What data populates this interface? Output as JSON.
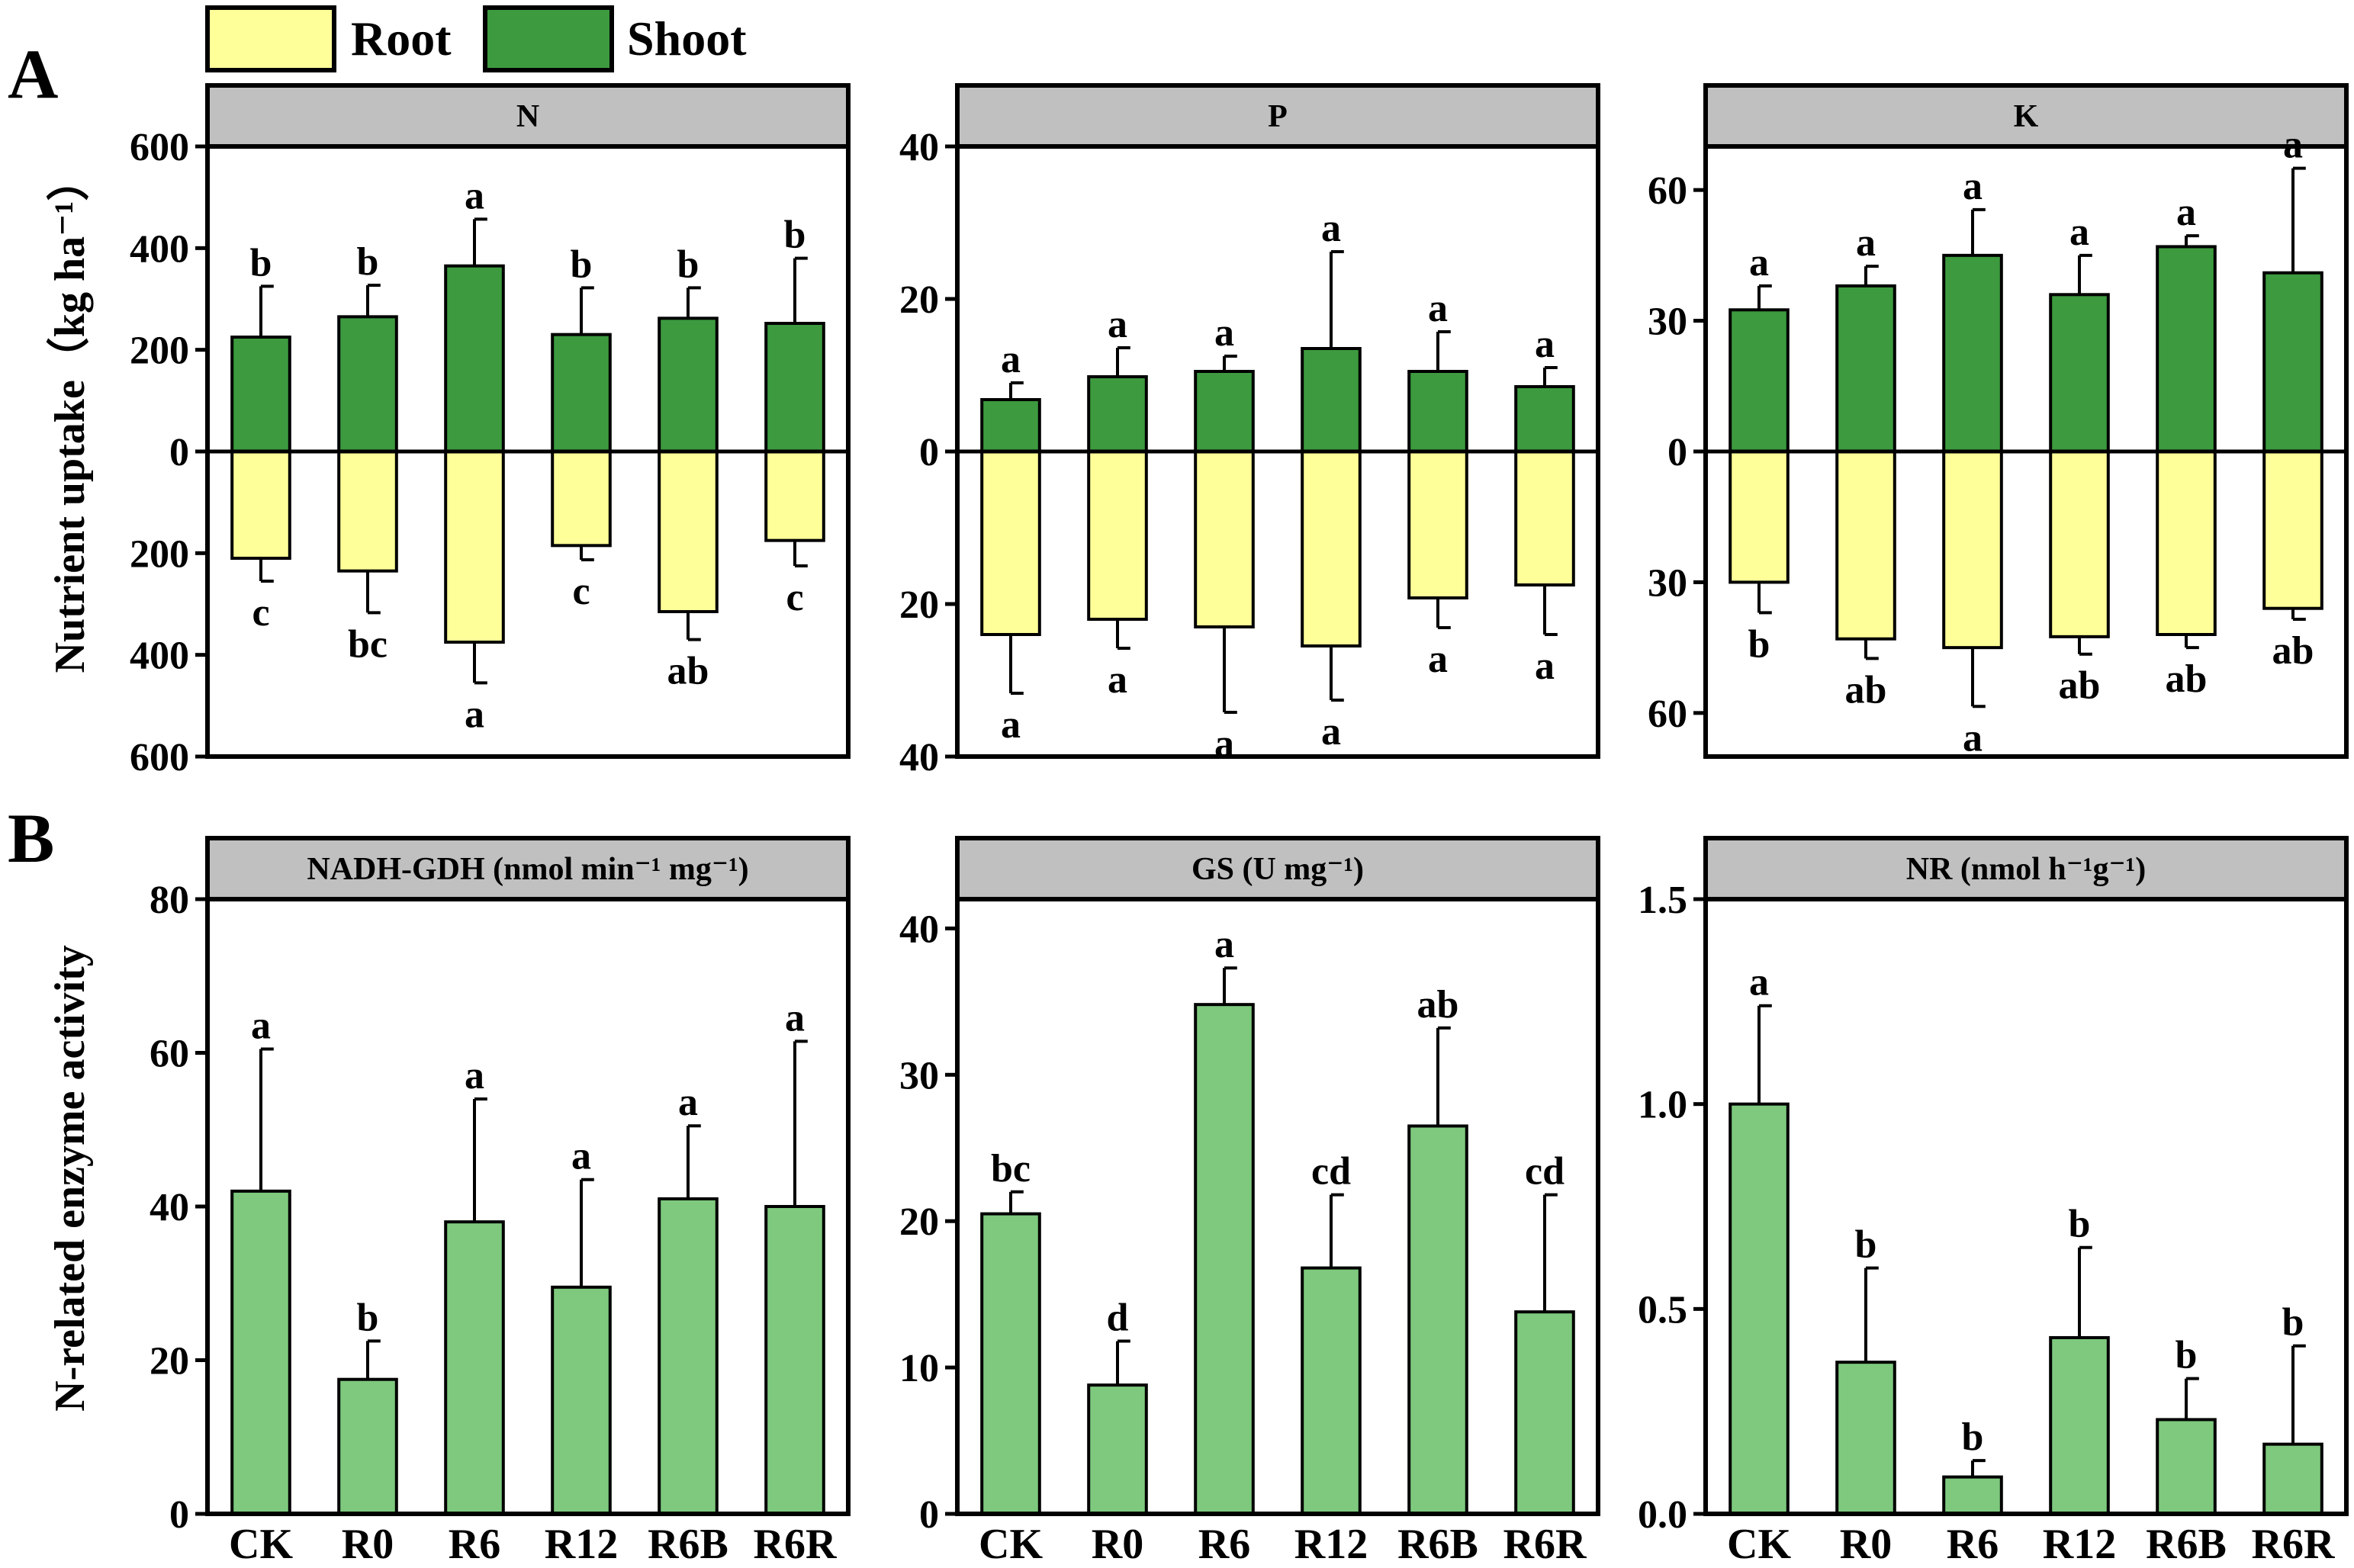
{
  "legend": {
    "root_label": "Root",
    "shoot_label": "Shoot",
    "root_color": "#ffff99",
    "shoot_color": "#3d9a3f"
  },
  "panel_labels": {
    "a": "A",
    "b": "B"
  },
  "row_a_ylabel": "Nutrient uptake（kg ha⁻¹）",
  "row_b_ylabel": "N-related enzyme activity",
  "enzyme_color": "#7ec97e",
  "header_color": "#c0c0c0",
  "chart_data": [
    {
      "type": "bar",
      "subtype": "diverging",
      "title": "N",
      "categories": [
        "CK",
        "R0",
        "R6",
        "R12",
        "R6B",
        "R6R"
      ],
      "ylim": [
        -600,
        600
      ],
      "yticks": [
        -600,
        -400,
        -200,
        0,
        200,
        400,
        600
      ],
      "series": [
        {
          "name": "Shoot",
          "values": [
            225,
            265,
            365,
            230,
            262,
            252
          ],
          "errors": [
            100,
            62,
            92,
            92,
            60,
            128
          ],
          "letters": [
            "b",
            "b",
            "a",
            "b",
            "b",
            "b"
          ]
        },
        {
          "name": "Root",
          "values": [
            -210,
            -235,
            -375,
            -185,
            -315,
            -175
          ],
          "errors": [
            45,
            82,
            80,
            28,
            55,
            50
          ],
          "letters": [
            "c",
            "bc",
            "a",
            "c",
            "ab",
            "c"
          ]
        }
      ]
    },
    {
      "type": "bar",
      "subtype": "diverging",
      "title": "P",
      "categories": [
        "CK",
        "R0",
        "R6",
        "R12",
        "R6B",
        "R6R"
      ],
      "ylim": [
        -40,
        40
      ],
      "yticks": [
        -40,
        -20,
        0,
        20,
        40
      ],
      "series": [
        {
          "name": "Shoot",
          "values": [
            6.8,
            9.8,
            10.5,
            13.5,
            10.5,
            8.5
          ],
          "errors": [
            2.2,
            3.8,
            2.0,
            12.7,
            5.2,
            2.5
          ],
          "letters": [
            "a",
            "a",
            "a",
            "a",
            "a",
            "a"
          ]
        },
        {
          "name": "Root",
          "values": [
            -24,
            -22,
            -23,
            -25.5,
            -19.2,
            -17.5
          ],
          "errors": [
            7.7,
            3.8,
            11.2,
            7.1,
            3.9,
            6.5
          ],
          "letters": [
            "a",
            "a",
            "a",
            "a",
            "a",
            "a"
          ]
        }
      ]
    },
    {
      "type": "bar",
      "subtype": "diverging",
      "title": "K",
      "categories": [
        "CK",
        "R0",
        "R6",
        "R12",
        "R6B",
        "R6R"
      ],
      "ylim": [
        -70,
        70
      ],
      "yticks": [
        -60,
        -30,
        0,
        30,
        60
      ],
      "series": [
        {
          "name": "Shoot",
          "values": [
            32.5,
            38,
            45,
            36,
            47,
            41
          ],
          "errors": [
            5.5,
            4.5,
            10.5,
            9,
            2.5,
            24
          ],
          "letters": [
            "a",
            "a",
            "a",
            "a",
            "a",
            "a"
          ]
        },
        {
          "name": "Root",
          "values": [
            -30,
            -43,
            -45,
            -42.5,
            -42,
            -36
          ],
          "errors": [
            7,
            4.5,
            13.5,
            4,
            3,
            2.5
          ],
          "letters": [
            "b",
            "ab",
            "a",
            "ab",
            "ab",
            "ab"
          ]
        }
      ]
    },
    {
      "type": "bar",
      "title": "NADH-GDH (nmol min⁻¹ mg⁻¹)",
      "categories": [
        "CK",
        "R0",
        "R6",
        "R12",
        "R6B",
        "R6R"
      ],
      "ylim": [
        0,
        80
      ],
      "yticks": [
        0,
        20,
        40,
        60,
        80
      ],
      "values": [
        42,
        17.5,
        38,
        29.5,
        41,
        40
      ],
      "errors": [
        18.5,
        5,
        16,
        14,
        9.5,
        21.5
      ],
      "letters": [
        "a",
        "b",
        "a",
        "a",
        "a",
        "a"
      ]
    },
    {
      "type": "bar",
      "title": "GS (U mg⁻¹)",
      "categories": [
        "CK",
        "R0",
        "R6",
        "R12",
        "R6B",
        "R6R"
      ],
      "ylim": [
        0,
        42
      ],
      "yticks": [
        0,
        10,
        20,
        30,
        40
      ],
      "values": [
        20.5,
        8.8,
        34.8,
        16.8,
        26.5,
        13.8
      ],
      "errors": [
        1.5,
        3,
        2.5,
        5,
        6.7,
        8
      ],
      "letters": [
        "bc",
        "d",
        "a",
        "cd",
        "ab",
        "cd"
      ]
    },
    {
      "type": "bar",
      "title": "NR (nmol h⁻¹g⁻¹)",
      "categories": [
        "CK",
        "R0",
        "R6",
        "R12",
        "R6B",
        "R6R"
      ],
      "ylim": [
        0,
        1.5
      ],
      "yticks": [
        0.0,
        0.5,
        1.0,
        1.5
      ],
      "ytick_labels": [
        "0.0",
        "0.5",
        "1.0",
        "1.5"
      ],
      "values": [
        1.0,
        0.37,
        0.09,
        0.43,
        0.23,
        0.17
      ],
      "errors": [
        0.24,
        0.23,
        0.04,
        0.22,
        0.1,
        0.24
      ],
      "letters": [
        "a",
        "b",
        "b",
        "b",
        "b",
        "b"
      ]
    }
  ]
}
